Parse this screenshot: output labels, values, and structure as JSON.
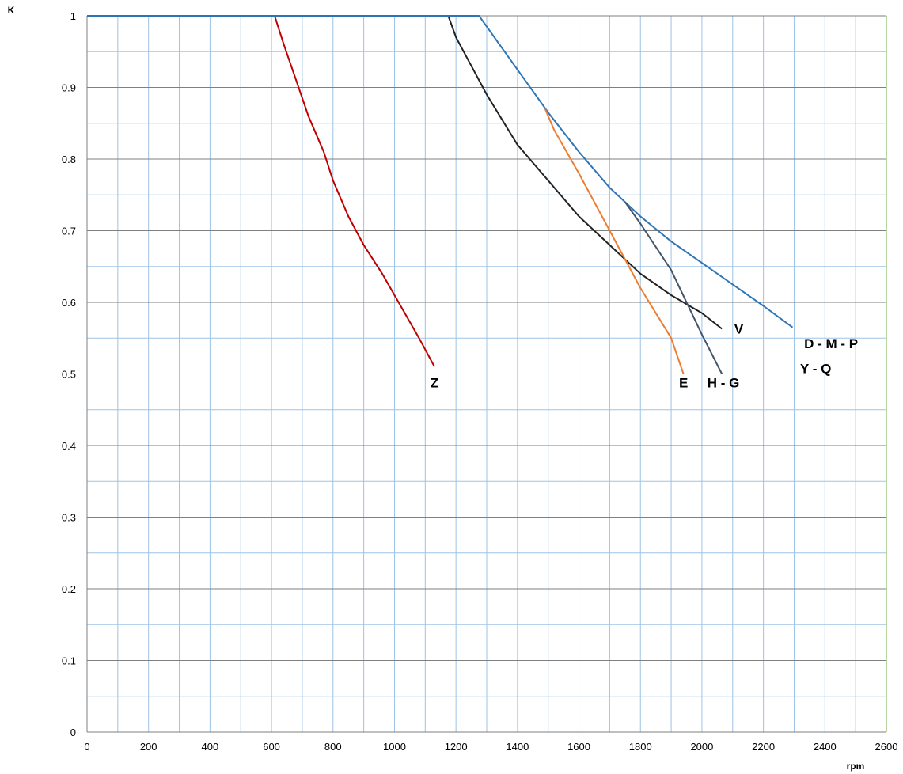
{
  "chart_data": {
    "type": "line",
    "title": "",
    "xlabel": "rpm",
    "ylabel": "K",
    "xlim": [
      0,
      2600
    ],
    "ylim": [
      0,
      1
    ],
    "x_ticks": [
      "0",
      "200",
      "400",
      "600",
      "800",
      "1000",
      "1200",
      "1400",
      "1600",
      "1800",
      "2000",
      "2200",
      "2400",
      "2600"
    ],
    "y_ticks": [
      "0",
      "0.1",
      "0.2",
      "0.3",
      "0.4",
      "0.5",
      "0.6",
      "0.7",
      "0.8",
      "0.9",
      "1"
    ],
    "grid": true,
    "legend": "none",
    "series": [
      {
        "name": "Z",
        "color": "#c00000",
        "points": [
          [
            0,
            1.0
          ],
          [
            610,
            1.0
          ],
          [
            640,
            0.96
          ],
          [
            680,
            0.91
          ],
          [
            720,
            0.86
          ],
          [
            770,
            0.81
          ],
          [
            800,
            0.77
          ],
          [
            850,
            0.72
          ],
          [
            900,
            0.68
          ],
          [
            960,
            0.64
          ],
          [
            1000,
            0.61
          ],
          [
            1040,
            0.58
          ],
          [
            1080,
            0.55
          ],
          [
            1130,
            0.51
          ]
        ]
      },
      {
        "name": "V",
        "color": "#222222",
        "points": [
          [
            0,
            1.0
          ],
          [
            1175,
            1.0
          ],
          [
            1200,
            0.97
          ],
          [
            1250,
            0.93
          ],
          [
            1300,
            0.89
          ],
          [
            1400,
            0.82
          ],
          [
            1500,
            0.77
          ],
          [
            1600,
            0.72
          ],
          [
            1700,
            0.68
          ],
          [
            1800,
            0.64
          ],
          [
            1900,
            0.61
          ],
          [
            2000,
            0.585
          ],
          [
            2065,
            0.563
          ]
        ]
      },
      {
        "name": "D - M - P\nY - Q",
        "color": "#2e75b6",
        "points": [
          [
            0,
            1.0
          ],
          [
            1275,
            1.0
          ],
          [
            1300,
            0.985
          ],
          [
            1400,
            0.925
          ],
          [
            1500,
            0.865
          ],
          [
            1600,
            0.81
          ],
          [
            1700,
            0.76
          ],
          [
            1800,
            0.72
          ],
          [
            1900,
            0.685
          ],
          [
            2000,
            0.655
          ],
          [
            2100,
            0.625
          ],
          [
            2200,
            0.595
          ],
          [
            2295,
            0.565
          ]
        ]
      },
      {
        "name": "H - G",
        "color": "#44546a",
        "points": [
          [
            1750,
            0.74
          ],
          [
            1800,
            0.71
          ],
          [
            1900,
            0.645
          ],
          [
            2000,
            0.555
          ],
          [
            2065,
            0.5
          ]
        ]
      },
      {
        "name": "E",
        "color": "#ed7d31",
        "points": [
          [
            1490,
            0.87
          ],
          [
            1520,
            0.84
          ],
          [
            1600,
            0.78
          ],
          [
            1700,
            0.7
          ],
          [
            1800,
            0.62
          ],
          [
            1900,
            0.55
          ],
          [
            1940,
            0.5
          ]
        ]
      }
    ],
    "label_positions": [
      {
        "text": "Z",
        "x": 1130,
        "y": 0.49
      },
      {
        "text": "E",
        "x": 1940,
        "y": 0.49
      },
      {
        "text": "H - G",
        "x": 2070,
        "y": 0.49
      },
      {
        "text": "V",
        "x": 2120,
        "y": 0.565
      },
      {
        "text": "D - M - P",
        "x": 2420,
        "y": 0.545
      },
      {
        "text": "Y - Q",
        "x": 2370,
        "y": 0.51
      }
    ]
  },
  "colors": {
    "major_grid": "#7f7f7f",
    "minor_grid": "#9dc3e6",
    "right_border": "#70ad47"
  }
}
